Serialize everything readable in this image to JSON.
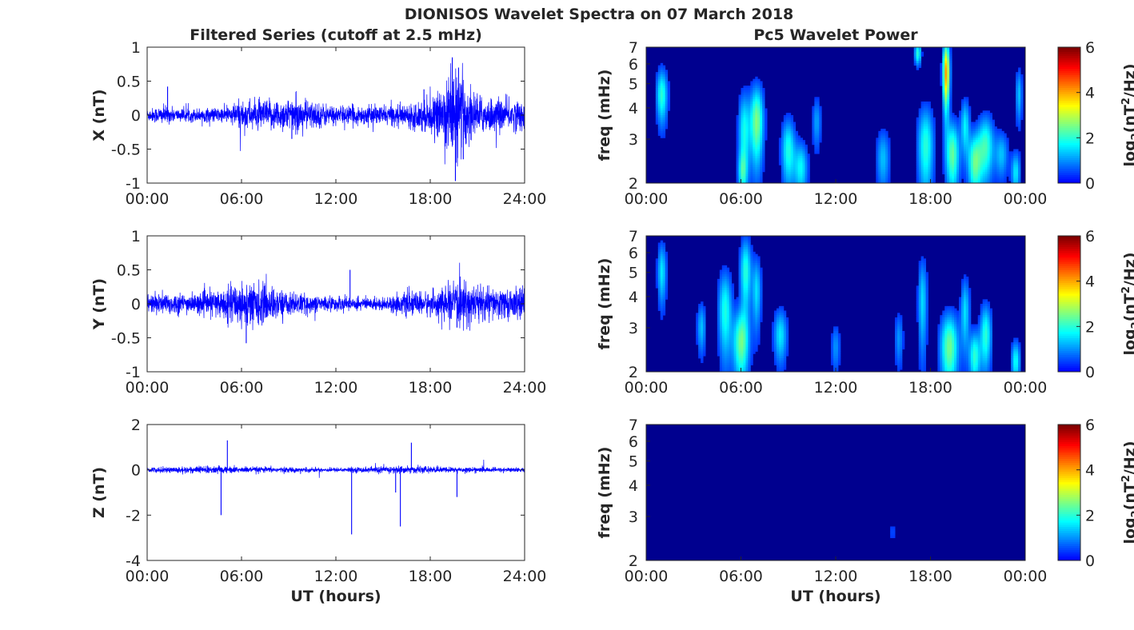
{
  "figure": {
    "title": "DIONISOS Wavelet Spectra on 07 March 2018",
    "left_column_title": "Filtered Series (cutoff at 2.5 mHz)",
    "right_column_title": "Pc5 Wavelet Power",
    "x_axis_label": "UT (hours)"
  },
  "chart_data": [
    {
      "type": "line",
      "panel": "X",
      "ylabel": "X (nT)",
      "xlabel": "",
      "xlim": [
        0,
        24
      ],
      "ylim": [
        -1,
        1
      ],
      "xticks": [
        "00:00",
        "06:00",
        "12:00",
        "18:00",
        "24:00"
      ],
      "yticks": [
        "-1",
        "-0.5",
        "0",
        "0.5",
        "1"
      ],
      "yticks_values": [
        -1,
        -0.5,
        0,
        0.5,
        1
      ],
      "series_color": "#0000ff",
      "baseline_amplitude_nT": 0.1,
      "envelope": [
        {
          "t": 0,
          "amp": 0.08
        },
        {
          "t": 1,
          "amp": 0.12
        },
        {
          "t": 2,
          "amp": 0.08
        },
        {
          "t": 5,
          "amp": 0.1
        },
        {
          "t": 6,
          "amp": 0.2
        },
        {
          "t": 7,
          "amp": 0.18
        },
        {
          "t": 9,
          "amp": 0.22
        },
        {
          "t": 10,
          "amp": 0.2
        },
        {
          "t": 12,
          "amp": 0.12
        },
        {
          "t": 15,
          "amp": 0.12
        },
        {
          "t": 16.5,
          "amp": 0.14
        },
        {
          "t": 17.5,
          "amp": 0.2
        },
        {
          "t": 18.5,
          "amp": 0.25
        },
        {
          "t": 19.3,
          "amp": 0.6
        },
        {
          "t": 20,
          "amp": 0.5
        },
        {
          "t": 21,
          "amp": 0.25
        },
        {
          "t": 22.5,
          "amp": 0.2
        },
        {
          "t": 24,
          "amp": 0.2
        }
      ],
      "spikes": [
        {
          "t": 1.3,
          "v": 0.42
        },
        {
          "t": 9.2,
          "v": -0.35
        },
        {
          "t": 17.6,
          "v": 0.38
        },
        {
          "t": 19.4,
          "v": 0.85
        },
        {
          "t": 19.6,
          "v": -0.97
        },
        {
          "t": 19.8,
          "v": 0.7
        },
        {
          "t": 20.1,
          "v": -0.65
        }
      ]
    },
    {
      "type": "line",
      "panel": "Y",
      "ylabel": "Y (nT)",
      "xlabel": "",
      "xlim": [
        0,
        24
      ],
      "ylim": [
        -1,
        1
      ],
      "xticks": [
        "00:00",
        "06:00",
        "12:00",
        "18:00",
        "24:00"
      ],
      "yticks": [
        "-1",
        "-0.5",
        "0",
        "0.5",
        "1"
      ],
      "yticks_values": [
        -1,
        -0.5,
        0,
        0.5,
        1
      ],
      "series_color": "#0000ff",
      "baseline_amplitude_nT": 0.1,
      "envelope": [
        {
          "t": 0,
          "amp": 0.12
        },
        {
          "t": 1,
          "amp": 0.15
        },
        {
          "t": 3,
          "amp": 0.12
        },
        {
          "t": 5,
          "amp": 0.2
        },
        {
          "t": 6,
          "amp": 0.3
        },
        {
          "t": 7,
          "amp": 0.28
        },
        {
          "t": 9,
          "amp": 0.15
        },
        {
          "t": 11,
          "amp": 0.1
        },
        {
          "t": 15,
          "amp": 0.08
        },
        {
          "t": 16.5,
          "amp": 0.15
        },
        {
          "t": 18,
          "amp": 0.15
        },
        {
          "t": 19.5,
          "amp": 0.25
        },
        {
          "t": 20.5,
          "amp": 0.28
        },
        {
          "t": 22,
          "amp": 0.2
        },
        {
          "t": 24,
          "amp": 0.2
        }
      ],
      "spikes": [
        {
          "t": 6.3,
          "v": -0.58
        },
        {
          "t": 12.9,
          "v": 0.5
        },
        {
          "t": 19.7,
          "v": -0.35
        }
      ]
    },
    {
      "type": "line",
      "panel": "Z",
      "ylabel": "Z (nT)",
      "xlabel": "UT (hours)",
      "xlim": [
        0,
        24
      ],
      "ylim": [
        -4,
        2
      ],
      "xticks": [
        "00:00",
        "06:00",
        "12:00",
        "18:00",
        "24:00"
      ],
      "yticks": [
        "-4",
        "-2",
        "0",
        "2"
      ],
      "yticks_values": [
        -4,
        -2,
        0,
        2
      ],
      "series_color": "#0000ff",
      "baseline_amplitude_nT": 0.08,
      "envelope": [
        {
          "t": 0,
          "amp": 0.1
        },
        {
          "t": 4,
          "amp": 0.15
        },
        {
          "t": 6,
          "amp": 0.12
        },
        {
          "t": 12,
          "amp": 0.08
        },
        {
          "t": 16,
          "amp": 0.15
        },
        {
          "t": 18,
          "amp": 0.12
        },
        {
          "t": 24,
          "amp": 0.08
        }
      ],
      "spikes": [
        {
          "t": 4.7,
          "v": -2.0
        },
        {
          "t": 5.1,
          "v": 1.3
        },
        {
          "t": 13.0,
          "v": -2.85
        },
        {
          "t": 15.8,
          "v": -1.0
        },
        {
          "t": 16.1,
          "v": -2.5
        },
        {
          "t": 16.8,
          "v": 1.2
        },
        {
          "t": 19.7,
          "v": -1.2
        }
      ]
    },
    {
      "type": "heatmap",
      "panel": "X",
      "ylabel": "freq (mHz)",
      "xlabel": "",
      "y_scale": "log",
      "ylim": [
        2,
        7
      ],
      "xlim": [
        0,
        24
      ],
      "xticks": [
        "00:00",
        "06:00",
        "12:00",
        "18:00",
        "00:00"
      ],
      "yticks": [
        "2",
        "3",
        "4",
        "5",
        "6",
        "7"
      ],
      "yticks_values": [
        2,
        3,
        4,
        5,
        6,
        7
      ],
      "colorbar": {
        "label": "log2(nT^2/Hz)",
        "clim": [
          0,
          6
        ],
        "ticks": [
          "0",
          "2",
          "4",
          "6"
        ],
        "colormap": "jet"
      },
      "features": [
        {
          "t": 1.0,
          "f": 4.5,
          "dt": 0.25,
          "df": 0.8,
          "p": 2.0
        },
        {
          "t": 6.2,
          "f": 3.2,
          "dt": 0.25,
          "df": 0.9,
          "p": 1.8
        },
        {
          "t": 7.0,
          "f": 3.5,
          "dt": 0.3,
          "df": 0.9,
          "p": 2.6
        },
        {
          "t": 6.1,
          "f": 2.2,
          "dt": 0.2,
          "df": 0.3,
          "p": 1.4
        },
        {
          "t": 9.0,
          "f": 2.7,
          "dt": 0.3,
          "df": 0.6,
          "p": 1.9
        },
        {
          "t": 9.8,
          "f": 2.3,
          "dt": 0.3,
          "df": 0.4,
          "p": 1.7
        },
        {
          "t": 10.8,
          "f": 3.5,
          "dt": 0.2,
          "df": 0.6,
          "p": 1.1
        },
        {
          "t": 15.0,
          "f": 2.5,
          "dt": 0.3,
          "df": 0.5,
          "p": 1.3
        },
        {
          "t": 17.7,
          "f": 2.8,
          "dt": 0.35,
          "df": 0.8,
          "p": 2.0
        },
        {
          "t": 17.2,
          "f": 6.6,
          "dt": 0.15,
          "df": 0.5,
          "p": 2.0
        },
        {
          "t": 19.0,
          "f": 5.5,
          "dt": 0.15,
          "df": 1.2,
          "p": 4.1
        },
        {
          "t": 19.4,
          "f": 2.6,
          "dt": 0.3,
          "df": 0.6,
          "p": 2.4
        },
        {
          "t": 20.2,
          "f": 3.4,
          "dt": 0.2,
          "df": 0.6,
          "p": 1.6
        },
        {
          "t": 20.8,
          "f": 2.4,
          "dt": 0.3,
          "df": 0.5,
          "p": 2.3
        },
        {
          "t": 21.5,
          "f": 2.8,
          "dt": 0.35,
          "df": 0.6,
          "p": 2.1
        },
        {
          "t": 22.5,
          "f": 2.6,
          "dt": 0.3,
          "df": 0.4,
          "p": 1.3
        },
        {
          "t": 23.4,
          "f": 2.2,
          "dt": 0.2,
          "df": 0.3,
          "p": 1.6
        },
        {
          "t": 23.6,
          "f": 4.5,
          "dt": 0.15,
          "df": 0.8,
          "p": 1.3
        }
      ]
    },
    {
      "type": "heatmap",
      "panel": "Y",
      "ylabel": "freq (mHz)",
      "xlabel": "",
      "y_scale": "log",
      "ylim": [
        2,
        7
      ],
      "xlim": [
        0,
        24
      ],
      "xticks": [
        "00:00",
        "06:00",
        "12:00",
        "18:00",
        "00:00"
      ],
      "yticks": [
        "2",
        "3",
        "4",
        "5",
        "6",
        "7"
      ],
      "yticks_values": [
        2,
        3,
        4,
        5,
        6,
        7
      ],
      "colorbar": {
        "label": "log2(nT^2/Hz)",
        "clim": [
          0,
          6
        ],
        "ticks": [
          "0",
          "2",
          "4",
          "6"
        ],
        "colormap": "jet"
      },
      "features": [
        {
          "t": 1.0,
          "f": 5.0,
          "dt": 0.2,
          "df": 1.0,
          "p": 1.6
        },
        {
          "t": 3.5,
          "f": 3.0,
          "dt": 0.2,
          "df": 0.5,
          "p": 1.3
        },
        {
          "t": 5.0,
          "f": 3.5,
          "dt": 0.3,
          "df": 1.0,
          "p": 1.9
        },
        {
          "t": 6.0,
          "f": 2.6,
          "dt": 0.35,
          "df": 0.6,
          "p": 2.4
        },
        {
          "t": 6.3,
          "f": 5.0,
          "dt": 0.25,
          "df": 1.2,
          "p": 2.0
        },
        {
          "t": 7.0,
          "f": 4.2,
          "dt": 0.2,
          "df": 1.0,
          "p": 1.5
        },
        {
          "t": 8.5,
          "f": 2.8,
          "dt": 0.3,
          "df": 0.5,
          "p": 1.6
        },
        {
          "t": 12.0,
          "f": 2.5,
          "dt": 0.2,
          "df": 0.4,
          "p": 1.0
        },
        {
          "t": 16.0,
          "f": 2.7,
          "dt": 0.2,
          "df": 0.5,
          "p": 1.0
        },
        {
          "t": 17.5,
          "f": 3.8,
          "dt": 0.2,
          "df": 1.2,
          "p": 1.5
        },
        {
          "t": 19.2,
          "f": 2.5,
          "dt": 0.4,
          "df": 0.6,
          "p": 2.5
        },
        {
          "t": 20.2,
          "f": 3.5,
          "dt": 0.2,
          "df": 0.8,
          "p": 1.5
        },
        {
          "t": 20.8,
          "f": 2.3,
          "dt": 0.25,
          "df": 0.4,
          "p": 2.0
        },
        {
          "t": 21.5,
          "f": 2.8,
          "dt": 0.25,
          "df": 0.6,
          "p": 2.0
        },
        {
          "t": 23.4,
          "f": 2.2,
          "dt": 0.2,
          "df": 0.3,
          "p": 1.8
        }
      ]
    },
    {
      "type": "heatmap",
      "panel": "Z",
      "ylabel": "freq (mHz)",
      "xlabel": "UT (hours)",
      "y_scale": "log",
      "ylim": [
        2,
        7
      ],
      "xlim": [
        0,
        24
      ],
      "xticks": [
        "00:00",
        "06:00",
        "12:00",
        "18:00",
        "00:00"
      ],
      "yticks": [
        "2",
        "3",
        "4",
        "5",
        "6",
        "7"
      ],
      "yticks_values": [
        2,
        3,
        4,
        5,
        6,
        7
      ],
      "colorbar": {
        "label": "log2(nT^2/Hz)",
        "clim": [
          0,
          6
        ],
        "ticks": [
          "0",
          "2",
          "4",
          "6"
        ],
        "colormap": "jet"
      },
      "features": [
        {
          "t": 15.6,
          "f": 2.6,
          "dt": 0.15,
          "df": 0.2,
          "p": 0.5
        },
        {
          "t": 4.8,
          "f": 6.8,
          "dt": 0.1,
          "df": 0.2,
          "p": 0.3
        }
      ]
    }
  ]
}
